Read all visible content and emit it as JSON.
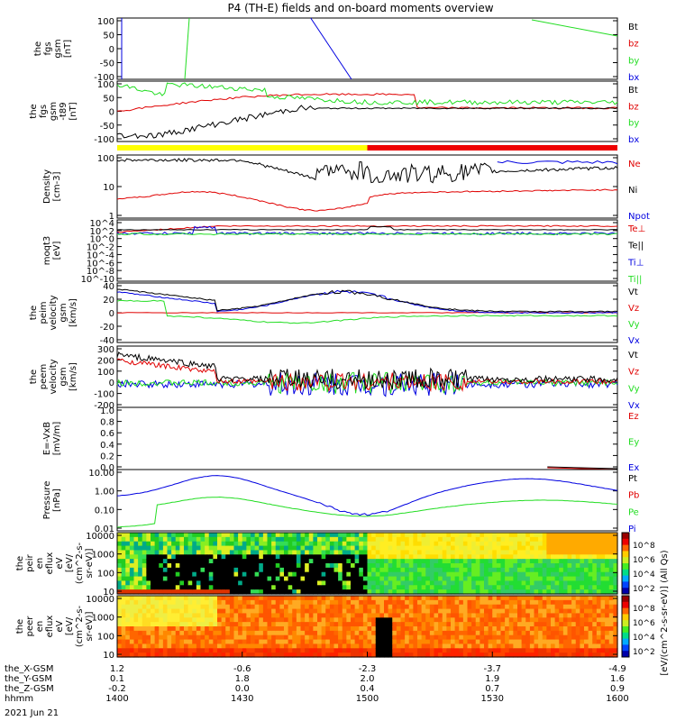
{
  "title": "P4 (TH-E) fields and on-board moments overview",
  "date_label": "2021 Jun 21",
  "colors": {
    "black": "#000000",
    "red": "#e00000",
    "green": "#22dd22",
    "blue": "#0000e0",
    "yellow": "#ffff00",
    "barred": "#ee0000"
  },
  "time_axis": {
    "start": "1400",
    "end": "1600",
    "rows": [
      {
        "label": "the_X-GSM",
        "values": [
          "1.2",
          "-0.6",
          "-2.3",
          "-3.7",
          "-4.9"
        ]
      },
      {
        "label": "the_Y-GSM",
        "values": [
          "0.1",
          "1.8",
          "2.0",
          "1.9",
          "1.6"
        ]
      },
      {
        "label": "the_Z-GSM",
        "values": [
          "-0.2",
          "0.0",
          "0.4",
          "0.7",
          "0.9"
        ]
      },
      {
        "label": "hhmm",
        "values": [
          "1400",
          "1430",
          "1500",
          "1530",
          "1600"
        ]
      }
    ]
  },
  "colorbar": {
    "label": "[eV/(cm^2-s-sr-eV)] (All Qs)",
    "upper_ticks": [
      "10^8",
      "10^6",
      "10^4",
      "10^2"
    ],
    "lower_ticks": [
      "10^8",
      "10^6",
      "10^4",
      "10^2"
    ]
  },
  "chart_data": [
    {
      "type": "line",
      "ylabel": [
        "the",
        "fgs",
        "gsm",
        "[nT]"
      ],
      "yticks": [
        "100",
        "50",
        "0",
        "-50",
        "-100"
      ],
      "ylim": [
        -100,
        100
      ],
      "legend": [
        {
          "name": "Bt",
          "color": "black"
        },
        {
          "name": "bz",
          "color": "red"
        },
        {
          "name": "by",
          "color": "green"
        },
        {
          "name": "bx",
          "color": "blue"
        }
      ]
    },
    {
      "type": "line",
      "ylabel": [
        "the",
        "fgs",
        "gsm",
        "-t89",
        "[nT]"
      ],
      "yticks": [
        "100",
        "50",
        "0",
        "-50",
        "-100"
      ],
      "ylim": [
        -120,
        100
      ],
      "legend": [
        {
          "name": "Bt",
          "color": "black"
        },
        {
          "name": "bz",
          "color": "red"
        },
        {
          "name": "by",
          "color": "green"
        },
        {
          "name": "bx",
          "color": "blue"
        }
      ]
    },
    {
      "type": "line",
      "log": true,
      "ylabel": [
        "Density",
        "[cm-3]"
      ],
      "yticks": [
        "100",
        "10",
        "1"
      ],
      "ylim": [
        0.5,
        200
      ],
      "legend": [
        {
          "name": "Ne",
          "color": "red"
        },
        {
          "name": "Ni",
          "color": "black"
        },
        {
          "name": "Npot",
          "color": "blue"
        }
      ]
    },
    {
      "type": "line",
      "log": true,
      "ylabel": [
        "moqt3",
        "[eV]"
      ],
      "yticks": [
        "10^4",
        "10^2",
        "10^0",
        "10^-2",
        "10^-4",
        "10^-6",
        "10^-8",
        "10^-10"
      ],
      "legend": [
        {
          "name": "Te⊥",
          "color": "red"
        },
        {
          "name": "Te||",
          "color": "black"
        },
        {
          "name": "Ti⊥",
          "color": "blue"
        },
        {
          "name": "Ti||",
          "color": "green"
        }
      ]
    },
    {
      "type": "line",
      "ylabel": [
        "the",
        "peim",
        "velocity",
        "gsm",
        "[km/s]"
      ],
      "yticks": [
        "40",
        "20",
        "0",
        "-20",
        "-40"
      ],
      "ylim": [
        -40,
        40
      ],
      "legend": [
        {
          "name": "Vt",
          "color": "black"
        },
        {
          "name": "Vz",
          "color": "red"
        },
        {
          "name": "Vy",
          "color": "green"
        },
        {
          "name": "Vx",
          "color": "blue"
        }
      ]
    },
    {
      "type": "line",
      "ylabel": [
        "the",
        "peem",
        "velocity",
        "gsm",
        "[km/s]"
      ],
      "yticks": [
        "300",
        "200",
        "100",
        "0",
        "-100",
        "-200"
      ],
      "ylim": [
        -200,
        300
      ],
      "legend": [
        {
          "name": "Vt",
          "color": "black"
        },
        {
          "name": "Vz",
          "color": "red"
        },
        {
          "name": "Vy",
          "color": "green"
        },
        {
          "name": "Vx",
          "color": "blue"
        }
      ]
    },
    {
      "type": "line",
      "ylabel": [
        "E=-VxB",
        "[mV/m]"
      ],
      "yticks": [
        "1.0",
        "0.8",
        "0.6",
        "0.4",
        "0.2",
        "0.0"
      ],
      "ylim": [
        0,
        1
      ],
      "legend": [
        {
          "name": "Ez",
          "color": "red"
        },
        {
          "name": "Ey",
          "color": "green"
        },
        {
          "name": "Ex",
          "color": "blue"
        }
      ]
    },
    {
      "type": "line",
      "log": true,
      "ylabel": [
        "Pressure",
        "[nPa]"
      ],
      "yticks": [
        "10.00",
        "1.00",
        "0.10",
        "0.01"
      ],
      "ylim": [
        0.01,
        30
      ],
      "legend": [
        {
          "name": "Pt",
          "color": "black"
        },
        {
          "name": "Pb",
          "color": "red"
        },
        {
          "name": "Pe",
          "color": "green"
        },
        {
          "name": "Pi",
          "color": "blue"
        }
      ]
    },
    {
      "type": "heatmap",
      "ylabel": [
        "the",
        "peir",
        "en",
        "eflux",
        "eV",
        "[eV/",
        "(cm^2-s-",
        "sr-eV)]"
      ],
      "yticks": [
        "10000",
        "1000",
        "100",
        "10"
      ]
    },
    {
      "type": "heatmap",
      "ylabel": [
        "the",
        "peer",
        "en",
        "eflux",
        "eV",
        "[eV/",
        "(cm^2-s-",
        "sr-eV)]"
      ],
      "yticks": [
        "10000",
        "1000",
        "100",
        "10"
      ]
    }
  ]
}
